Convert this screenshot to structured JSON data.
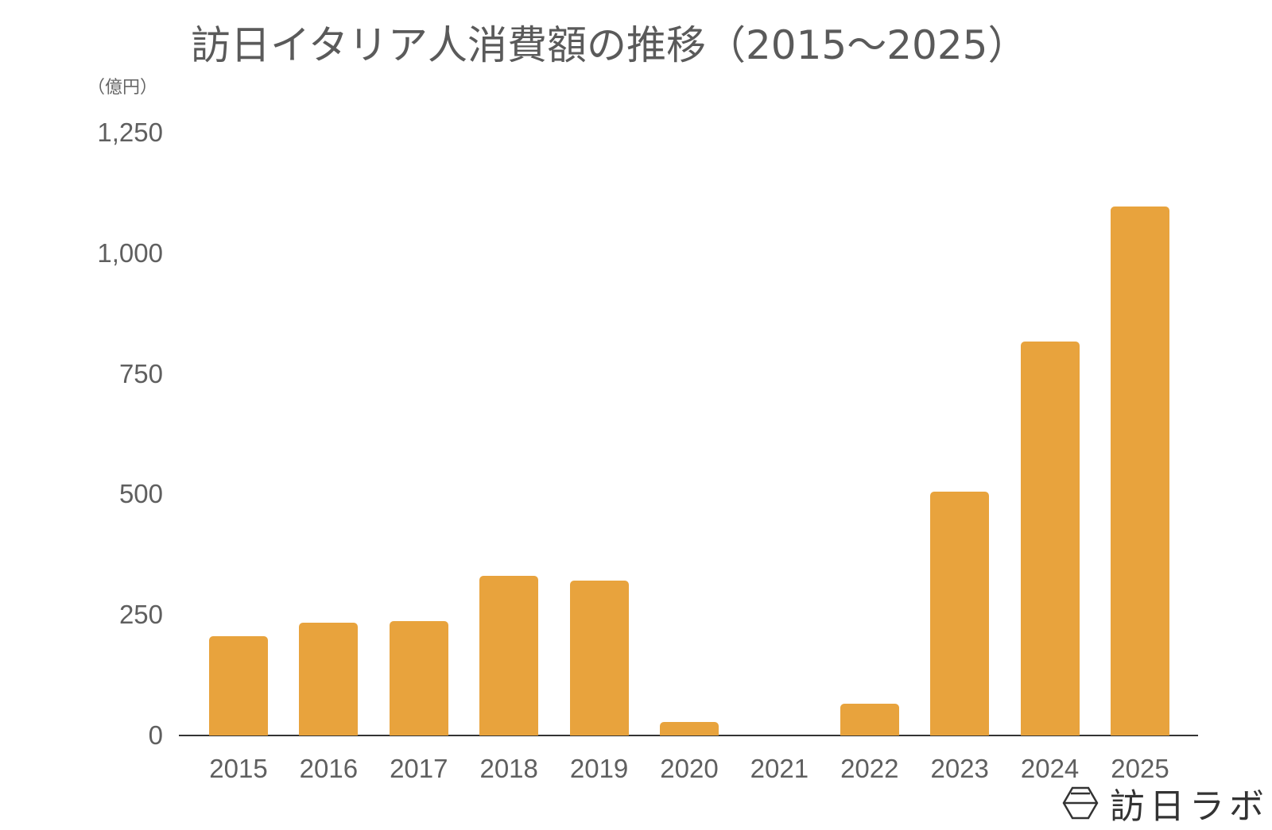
{
  "chart_data": {
    "type": "bar",
    "title": "訪日イタリア人消費額の推移（2015〜2025）",
    "xlabel": "",
    "ylabel": "（億円）",
    "categories": [
      "2015",
      "2016",
      "2017",
      "2018",
      "2019",
      "2020",
      "2021",
      "2022",
      "2023",
      "2024",
      "2025"
    ],
    "values": [
      206,
      234,
      237,
      331,
      321,
      28,
      0,
      66,
      505,
      817,
      1097
    ],
    "ylim": [
      0,
      1250
    ],
    "yticks": [
      0,
      250,
      500,
      750,
      1000,
      1250
    ],
    "ytick_labels": [
      "0",
      "250",
      "500",
      "750",
      "1,000",
      "1,250"
    ],
    "grid": false,
    "legend": null,
    "bar_color": "#E8A33D",
    "axis_color": "#333333"
  },
  "header": {
    "title": "訪日イタリア人消費額の推移（2015〜2025）",
    "unit_label": "（億円）"
  },
  "watermark": {
    "text": "訪日ラボ",
    "icon": "hexagon-logo-icon"
  }
}
